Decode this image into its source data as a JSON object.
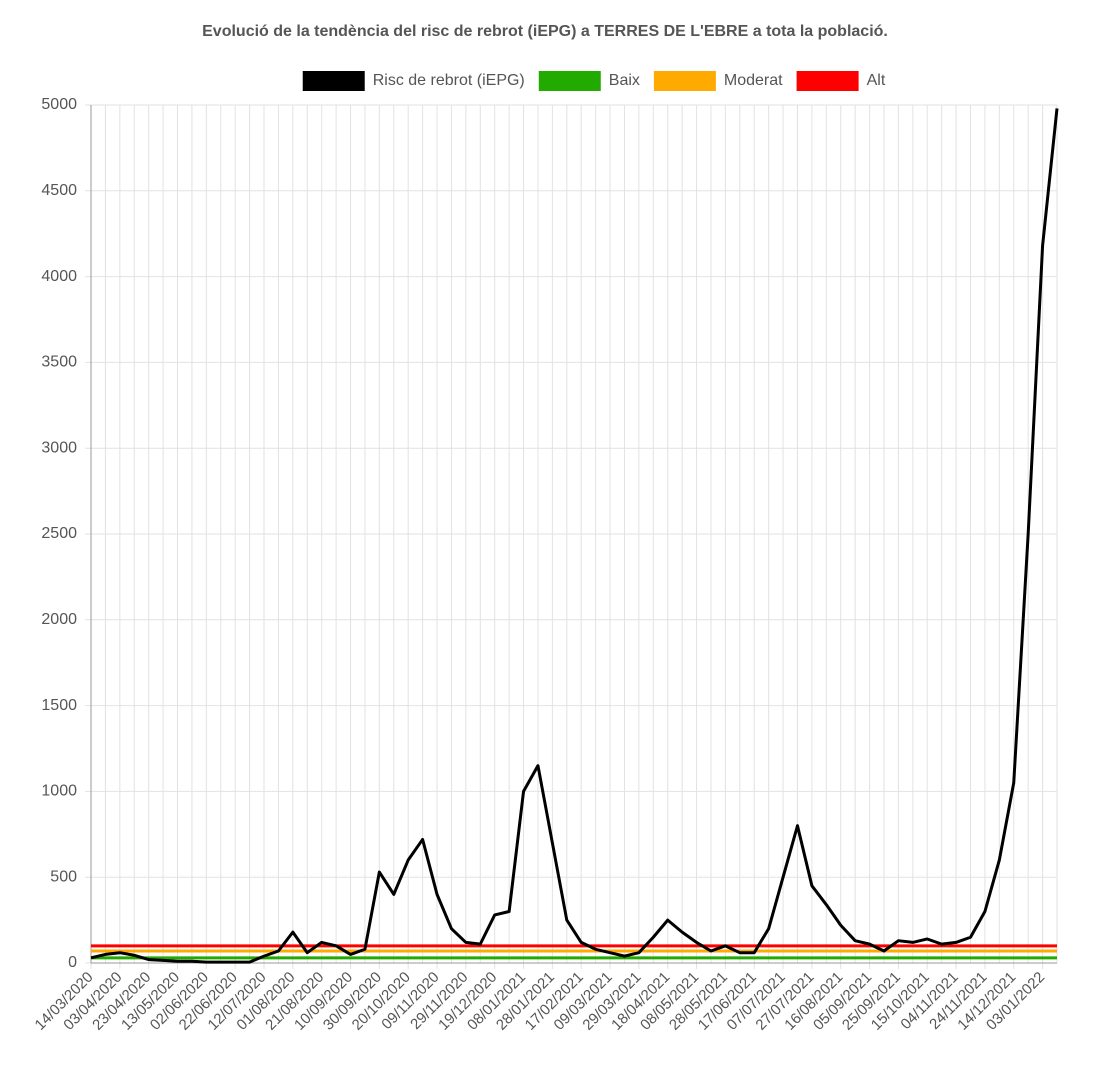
{
  "chart_data": {
    "type": "line",
    "title": "Evolució de la tendència del risc de rebrot (iEPG) a TERRES DE L'EBRE a tota la població.",
    "categories": [
      "14/03/2020",
      null,
      "03/04/2020",
      null,
      "23/04/2020",
      null,
      "13/05/2020",
      null,
      "02/06/2020",
      null,
      "22/06/2020",
      null,
      "12/07/2020",
      null,
      "01/08/2020",
      null,
      "21/08/2020",
      null,
      "10/09/2020",
      null,
      "30/09/2020",
      null,
      "20/10/2020",
      null,
      "09/11/2020",
      null,
      "29/11/2020",
      null,
      "19/12/2020",
      null,
      "08/01/2021",
      null,
      "28/01/2021",
      null,
      "17/02/2021",
      null,
      "09/03/2021",
      null,
      "29/03/2021",
      null,
      "18/04/2021",
      null,
      "08/05/2021",
      null,
      "28/05/2021",
      null,
      "17/06/2021",
      null,
      "07/07/2021",
      null,
      "27/07/2021",
      null,
      "16/08/2021",
      null,
      "05/09/2021",
      null,
      "25/09/2021",
      null,
      "15/10/2021",
      null,
      "04/11/2021",
      null,
      "24/11/2021",
      null,
      "14/12/2021",
      null,
      "03/01/2022",
      null
    ],
    "series": [
      {
        "name": "Risc de rebrot (iEPG)",
        "color": "#000000",
        "values": [
          30,
          50,
          60,
          45,
          20,
          15,
          10,
          10,
          5,
          5,
          5,
          5,
          40,
          70,
          180,
          60,
          120,
          100,
          50,
          80,
          530,
          400,
          600,
          720,
          400,
          200,
          120,
          110,
          280,
          300,
          1000,
          1150,
          700,
          250,
          120,
          80,
          60,
          40,
          60,
          150,
          250,
          180,
          120,
          70,
          100,
          60,
          60,
          200,
          500,
          800,
          450,
          340,
          220,
          130,
          110,
          70,
          130,
          120,
          140,
          110,
          120,
          150,
          300,
          600,
          1050,
          2500,
          4180,
          4980
        ]
      },
      {
        "name": "Baix",
        "color": "#22aa00",
        "value": 30
      },
      {
        "name": "Moderat",
        "color": "#ffaa00",
        "value": 70
      },
      {
        "name": "Alt",
        "color": "#ff0000",
        "value": 100
      }
    ],
    "ylim": [
      0,
      5000
    ],
    "yticks": [
      0,
      500,
      1000,
      1500,
      2000,
      2500,
      3000,
      3500,
      4000,
      4500,
      5000
    ],
    "grid": true,
    "legend": "top"
  }
}
